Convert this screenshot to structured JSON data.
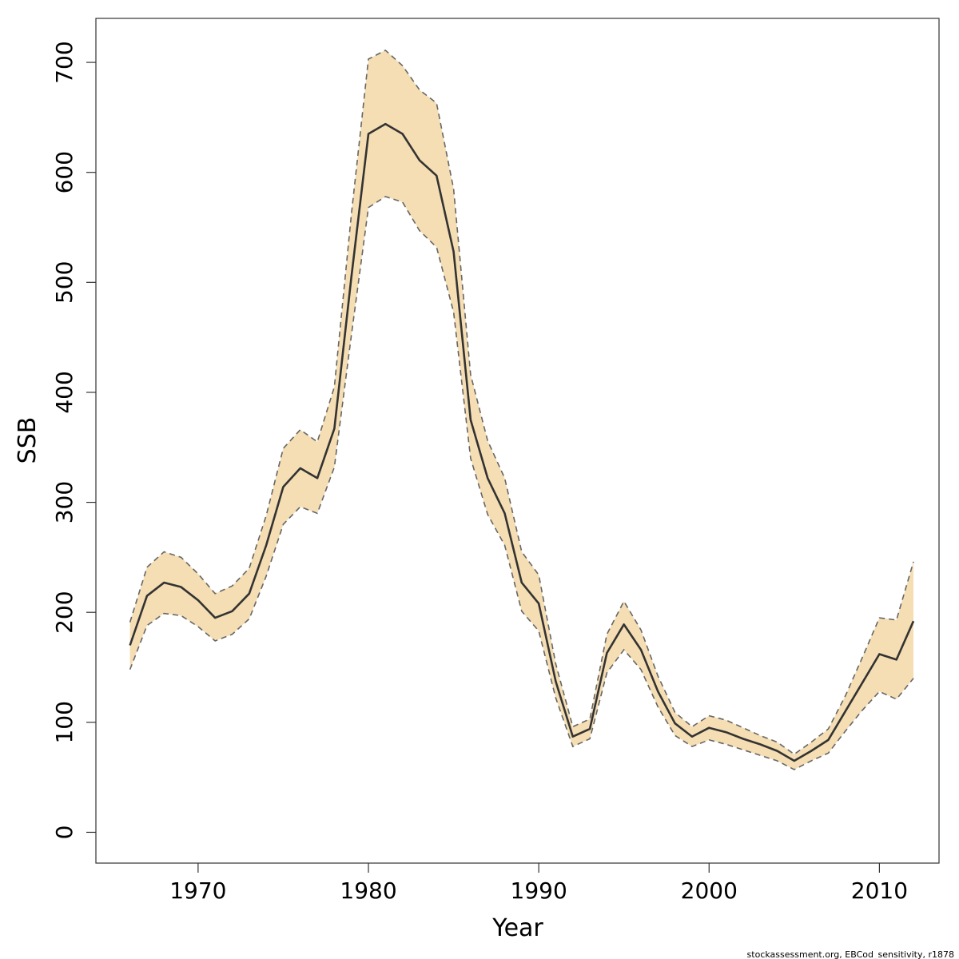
{
  "chart_data": {
    "type": "area",
    "xlabel": "Year",
    "ylabel": "SSB",
    "xlim": [
      1964,
      2013.5
    ],
    "ylim": [
      -28,
      740
    ],
    "xticks": [
      1970,
      1980,
      1990,
      2000,
      2010
    ],
    "yticks": [
      0,
      100,
      200,
      300,
      400,
      500,
      600,
      700
    ],
    "grid": false,
    "legend": "none",
    "footnote": "stockassessment.org, EBCod_sensitivity, r1878",
    "colors": {
      "band": "#f5deb3",
      "line": "#333333",
      "bounds": "#666666"
    },
    "x": [
      1966,
      1967,
      1968,
      1969,
      1970,
      1971,
      1972,
      1973,
      1974,
      1975,
      1976,
      1977,
      1978,
      1979,
      1980,
      1981,
      1982,
      1983,
      1984,
      1985,
      1986,
      1987,
      1988,
      1989,
      1990,
      1991,
      1992,
      1993,
      1994,
      1995,
      1996,
      1997,
      1998,
      1999,
      2000,
      2001,
      2002,
      2003,
      2004,
      2005,
      2006,
      2007,
      2008,
      2009,
      2010,
      2011,
      2012
    ],
    "series": [
      {
        "name": "SSB",
        "values": [
          170,
          215,
          227,
          223,
          211,
          195,
          201,
          217,
          261,
          314,
          331,
          322,
          367,
          505,
          635,
          644,
          635,
          611,
          597,
          528,
          375,
          322,
          290,
          227,
          208,
          137,
          87,
          94,
          163,
          189,
          166,
          128,
          99,
          87,
          95,
          91,
          85,
          80,
          74,
          65,
          74,
          84,
          110,
          136,
          162,
          157,
          192
        ]
      },
      {
        "name": "upper",
        "values": [
          191,
          241,
          255,
          250,
          235,
          217,
          224,
          240,
          288,
          349,
          366,
          355,
          405,
          562,
          703,
          711,
          697,
          675,
          663,
          585,
          416,
          356,
          322,
          255,
          234,
          153,
          96,
          103,
          180,
          210,
          184,
          142,
          109,
          96,
          106,
          102,
          95,
          88,
          82,
          71,
          82,
          94,
          124,
          159,
          195,
          193,
          246
        ]
      },
      {
        "name": "lower",
        "values": [
          148,
          188,
          199,
          197,
          187,
          174,
          180,
          194,
          233,
          280,
          296,
          290,
          332,
          452,
          568,
          578,
          573,
          547,
          532,
          473,
          340,
          289,
          261,
          201,
          183,
          122,
          78,
          85,
          145,
          166,
          148,
          114,
          88,
          78,
          84,
          80,
          75,
          70,
          65,
          57,
          65,
          72,
          92,
          111,
          128,
          121,
          140
        ]
      }
    ]
  }
}
